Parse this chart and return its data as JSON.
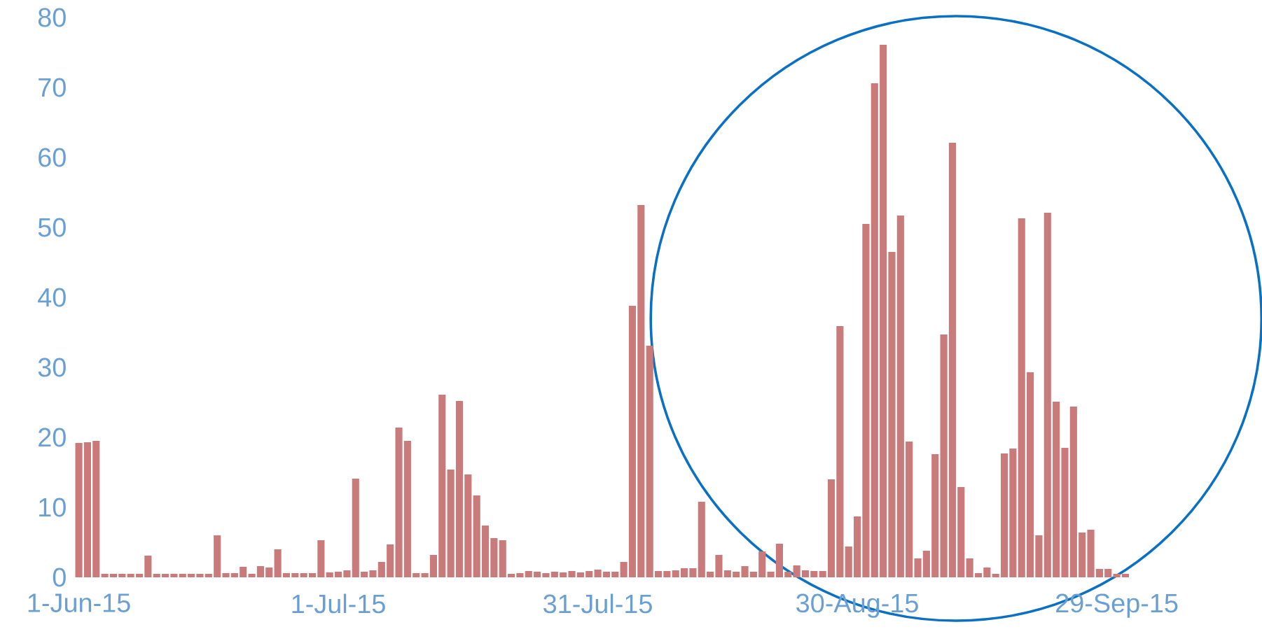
{
  "chart_data": {
    "type": "bar",
    "color": "#c97b7b",
    "x": [
      "2015-06-01",
      "2015-06-02",
      "2015-06-03",
      "2015-06-04",
      "2015-06-05",
      "2015-06-06",
      "2015-06-07",
      "2015-06-08",
      "2015-06-09",
      "2015-06-10",
      "2015-06-11",
      "2015-06-12",
      "2015-06-13",
      "2015-06-14",
      "2015-06-15",
      "2015-06-16",
      "2015-06-17",
      "2015-06-18",
      "2015-06-19",
      "2015-06-20",
      "2015-06-21",
      "2015-06-22",
      "2015-06-23",
      "2015-06-24",
      "2015-06-25",
      "2015-06-26",
      "2015-06-27",
      "2015-06-28",
      "2015-06-29",
      "2015-06-30",
      "2015-07-01",
      "2015-07-02",
      "2015-07-03",
      "2015-07-04",
      "2015-07-05",
      "2015-07-06",
      "2015-07-07",
      "2015-07-08",
      "2015-07-09",
      "2015-07-10",
      "2015-07-11",
      "2015-07-12",
      "2015-07-13",
      "2015-07-14",
      "2015-07-15",
      "2015-07-16",
      "2015-07-17",
      "2015-07-18",
      "2015-07-19",
      "2015-07-20",
      "2015-07-21",
      "2015-07-22",
      "2015-07-23",
      "2015-07-24",
      "2015-07-25",
      "2015-07-26",
      "2015-07-27",
      "2015-07-28",
      "2015-07-29",
      "2015-07-30",
      "2015-07-31",
      "2015-08-01",
      "2015-08-02",
      "2015-08-03",
      "2015-08-04",
      "2015-08-05",
      "2015-08-06",
      "2015-08-07",
      "2015-08-08",
      "2015-08-09",
      "2015-08-10",
      "2015-08-11",
      "2015-08-12",
      "2015-08-13",
      "2015-08-14",
      "2015-08-15",
      "2015-08-16",
      "2015-08-17",
      "2015-08-18",
      "2015-08-19",
      "2015-08-20",
      "2015-08-21",
      "2015-08-22",
      "2015-08-23",
      "2015-08-24",
      "2015-08-25",
      "2015-08-26",
      "2015-08-27",
      "2015-08-28",
      "2015-08-29",
      "2015-08-30",
      "2015-08-31",
      "2015-09-01",
      "2015-09-02",
      "2015-09-03",
      "2015-09-04",
      "2015-09-05",
      "2015-09-06",
      "2015-09-07",
      "2015-09-08",
      "2015-09-09",
      "2015-09-10",
      "2015-09-11",
      "2015-09-12",
      "2015-09-13",
      "2015-09-14",
      "2015-09-15",
      "2015-09-16",
      "2015-09-17",
      "2015-09-18",
      "2015-09-19",
      "2015-09-20",
      "2015-09-21",
      "2015-09-22",
      "2015-09-23",
      "2015-09-24",
      "2015-09-25",
      "2015-09-26",
      "2015-09-27",
      "2015-09-28",
      "2015-09-29",
      "2015-09-30"
    ],
    "values": [
      19.2,
      19.3,
      19.5,
      0.5,
      0.5,
      0.5,
      0.5,
      0.5,
      3.1,
      0.5,
      0.5,
      0.5,
      0.5,
      0.5,
      0.5,
      0.5,
      6.0,
      0.6,
      0.6,
      1.5,
      0.5,
      1.6,
      1.4,
      4.0,
      0.6,
      0.6,
      0.6,
      0.6,
      5.3,
      0.7,
      0.8,
      1.0,
      14.1,
      0.8,
      1.0,
      2.2,
      4.7,
      21.4,
      19.5,
      0.6,
      0.6,
      3.2,
      26.1,
      15.4,
      25.2,
      14.7,
      11.7,
      7.4,
      5.6,
      5.3,
      0.5,
      0.6,
      0.9,
      0.8,
      0.6,
      0.8,
      0.7,
      0.9,
      0.7,
      0.9,
      1.1,
      0.8,
      0.8,
      2.2,
      38.8,
      53.2,
      33.1,
      0.9,
      0.9,
      1.0,
      1.3,
      1.3,
      10.8,
      0.8,
      3.2,
      1.0,
      0.8,
      1.6,
      0.8,
      3.7,
      0.8,
      4.8,
      0.8,
      1.7,
      1.0,
      0.9,
      0.9,
      14.0,
      35.9,
      4.4,
      8.7,
      50.5,
      70.6,
      76.1,
      46.5,
      51.7,
      19.4,
      2.7,
      3.8,
      17.6,
      34.7,
      62.1,
      12.9,
      2.7,
      0.6,
      1.4,
      0.5,
      17.7,
      18.4,
      51.3,
      29.3,
      6.0,
      52.1,
      25.1,
      18.5,
      24.4,
      6.4,
      6.8,
      1.2,
      1.2,
      0.5,
      0.5
    ],
    "xlim": [
      "2015-05-31T12:00",
      "2015-09-30T12:00"
    ],
    "xticks": [
      {
        "value": "2015-06-01",
        "label": "1-Jun-15"
      },
      {
        "value": "2015-07-01",
        "label": "1-Jul-15"
      },
      {
        "value": "2015-07-31",
        "label": "31-Jul-15"
      },
      {
        "value": "2015-08-30",
        "label": "30-Aug-15"
      },
      {
        "value": "2015-09-29",
        "label": "29-Sep-15"
      }
    ],
    "ylim": [
      0,
      80
    ],
    "yticks": [
      0,
      10,
      20,
      30,
      40,
      50,
      60,
      70,
      80
    ]
  }
}
